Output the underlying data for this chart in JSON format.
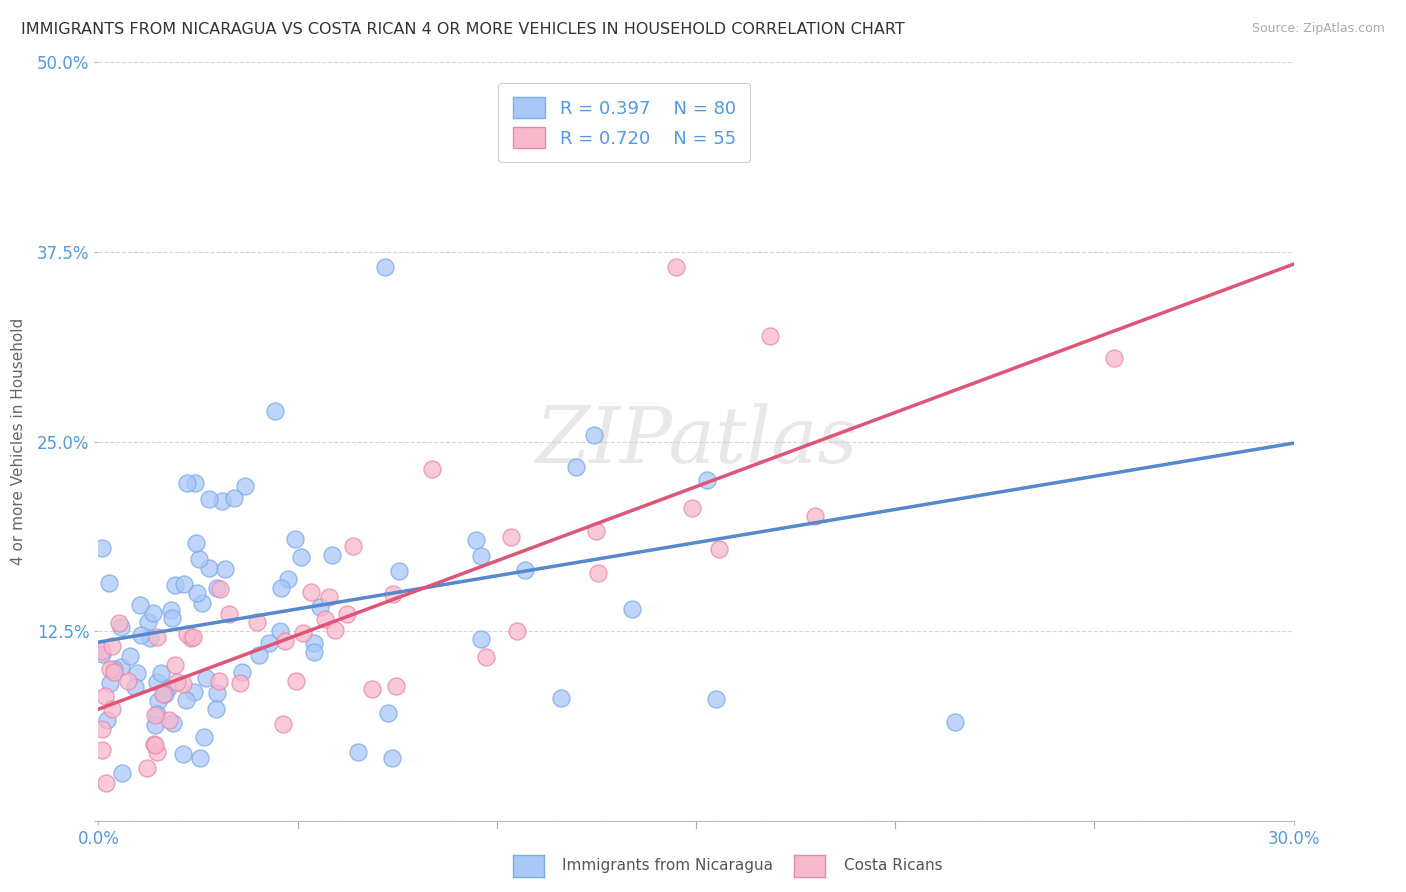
{
  "title": "IMMIGRANTS FROM NICARAGUA VS COSTA RICAN 4 OR MORE VEHICLES IN HOUSEHOLD CORRELATION CHART",
  "source": "Source: ZipAtlas.com",
  "ylabel": "4 or more Vehicles in Household",
  "xmin": 0.0,
  "xmax": 0.3,
  "ymin": 0.0,
  "ymax": 0.5,
  "xticks": [
    0.0,
    0.05,
    0.1,
    0.15,
    0.2,
    0.25,
    0.3
  ],
  "yticks": [
    0.0,
    0.125,
    0.25,
    0.375,
    0.5
  ],
  "legend_r1": "R = 0.397",
  "legend_n1": "N = 80",
  "legend_r2": "R = 0.720",
  "legend_n2": "N = 55",
  "series1_color": "#aac8f8",
  "series1_edge": "#7aaae8",
  "series2_color": "#f8b8cc",
  "series2_edge": "#e888aa",
  "trend1_color": "#5588cc",
  "trend2_color": "#dd5577",
  "label1": "Immigrants from Nicaragua",
  "label2": "Costa Ricans",
  "r1": 0.397,
  "n1": 80,
  "r2": 0.72,
  "n2": 55,
  "watermark": "ZIPatlas",
  "background": "#ffffff",
  "grid_color": "#bbbbbb",
  "axis_label_color": "#5599dd",
  "title_color": "#333333",
  "trend1_intercept": 0.048,
  "trend1_slope": 0.68,
  "trend2_intercept": 0.038,
  "trend2_slope": 1.05
}
